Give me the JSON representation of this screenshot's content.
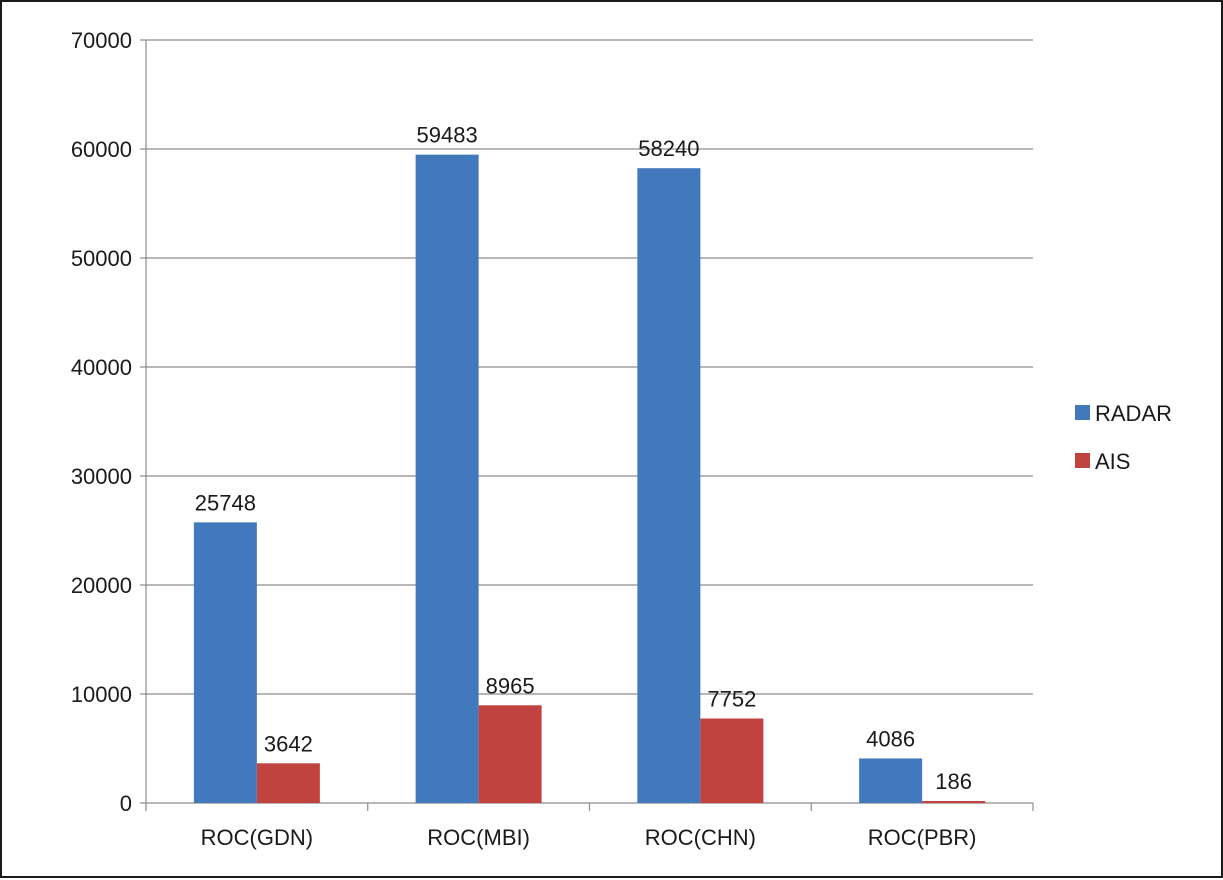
{
  "chart_data": {
    "type": "bar",
    "title": "",
    "xlabel": "",
    "ylabel": "",
    "categories": [
      "ROC(GDN)",
      "ROC(MBI)",
      "ROC(CHN)",
      "ROC(PBR)"
    ],
    "series": [
      {
        "name": "RADAR",
        "values": [
          25748,
          59483,
          58240,
          4086
        ],
        "color": "#4279BD"
      },
      {
        "name": "AIS",
        "values": [
          3642,
          8965,
          7752,
          186
        ],
        "color": "#C0433F"
      }
    ],
    "ylim": [
      0,
      70000
    ],
    "yticks": [
      0,
      10000,
      20000,
      30000,
      40000,
      50000,
      60000,
      70000
    ],
    "grid": true,
    "legend_position": "right",
    "data_labels": true
  }
}
